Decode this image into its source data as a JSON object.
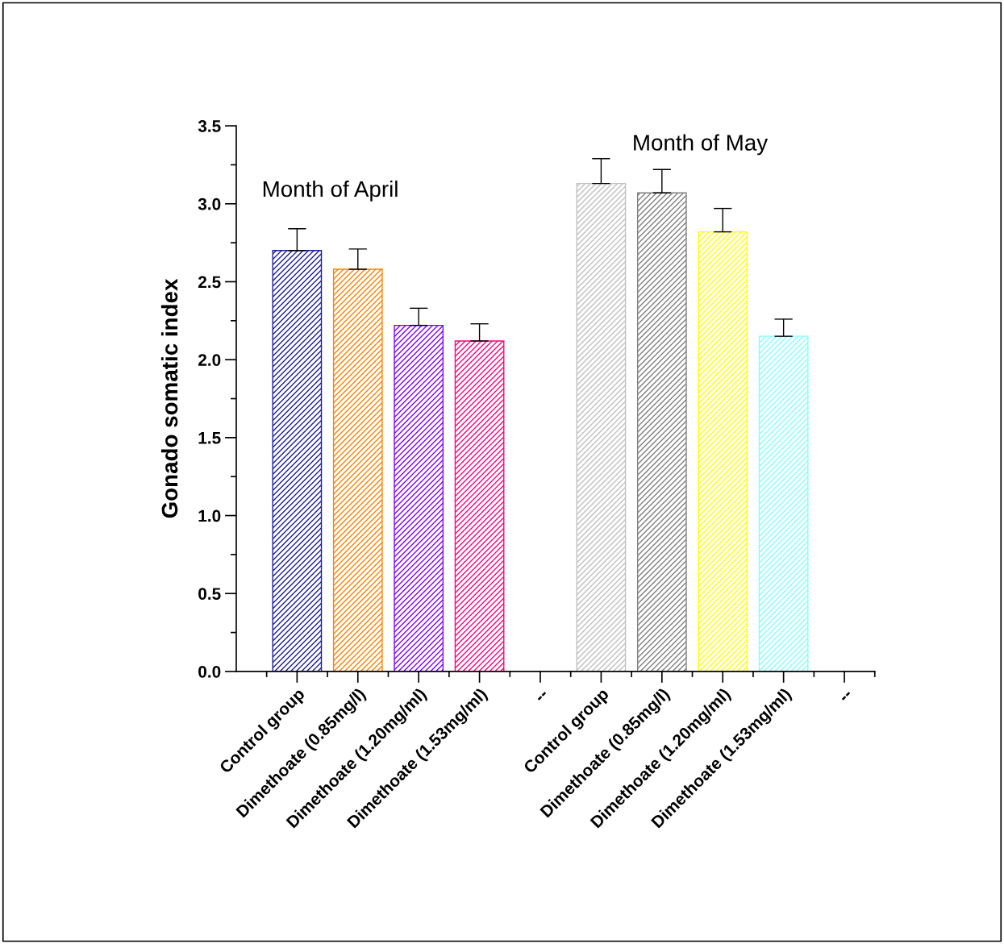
{
  "chart_data": {
    "type": "bar",
    "ylabel": "Gonado somatic index",
    "categories": [
      "Control group",
      "Dimethoate (0.85mg/l)",
      "Dimethoate (1.20mg/ml)",
      "Dimethoate (1.53mg/ml)",
      "--",
      "Control group",
      "Dimethoate (0.85mg/l)",
      "Dimethoate (1.20mg/ml)",
      "Dimethoate (1.53mg/ml)",
      "--"
    ],
    "values": [
      2.7,
      2.58,
      2.22,
      2.12,
      null,
      3.13,
      3.07,
      2.82,
      2.15,
      null
    ],
    "colors": [
      "#1c1c9c",
      "#ff8000",
      "#8000ff",
      "#ff0080",
      null,
      "#c0c0c0",
      "#808080",
      "#ffff00",
      "#80ffff",
      null
    ],
    "errors": [
      [
        2.7,
        2.84
      ],
      [
        2.58,
        2.71
      ],
      [
        2.22,
        2.33
      ],
      [
        2.12,
        2.23
      ],
      null,
      [
        3.13,
        3.29
      ],
      [
        3.07,
        3.22
      ],
      [
        2.82,
        2.97
      ],
      [
        2.15,
        2.26
      ],
      null
    ],
    "ylim": [
      0,
      3.5
    ],
    "yticks": [
      {
        "value": 0,
        "label": "0.0"
      },
      {
        "value": 0.5,
        "label": "0.5"
      },
      {
        "value": 1.0,
        "label": "1.0"
      },
      {
        "value": 1.5,
        "label": "1.5"
      },
      {
        "value": 2.0,
        "label": "2.0"
      },
      {
        "value": 2.5,
        "label": "2.5"
      },
      {
        "value": 3.0,
        "label": "3.0"
      },
      {
        "value": 3.5,
        "label": "3.5"
      }
    ],
    "annotations": [
      "Month of April",
      "Month of May"
    ],
    "grid": false,
    "legend": false
  }
}
